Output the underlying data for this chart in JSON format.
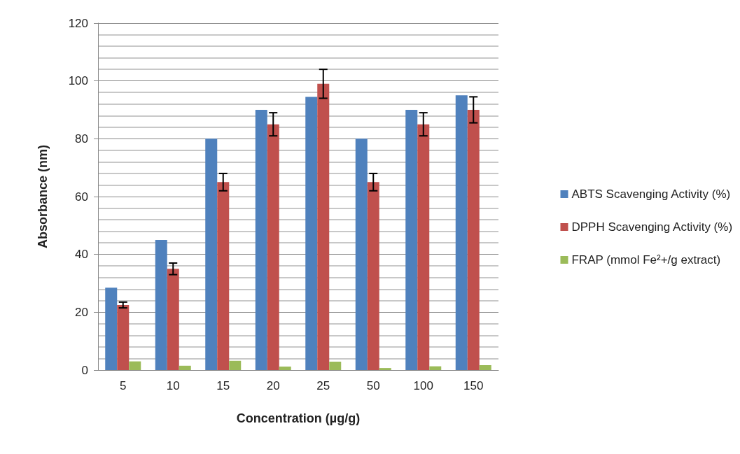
{
  "chart_data": {
    "type": "bar",
    "xlabel": "Concentration (µg/g)",
    "ylabel": "Absorbance (nm)",
    "categories": [
      "5",
      "10",
      "15",
      "20",
      "25",
      "50",
      "100",
      "150"
    ],
    "series": [
      {
        "name": "ABTS Scavenging Activity (%)",
        "color": "#4f81bd",
        "values": [
          28.5,
          45,
          80,
          90,
          94.5,
          80,
          90,
          95
        ]
      },
      {
        "name": "DPPH Scavenging Activity (%)",
        "color": "#c0504d",
        "values": [
          22.5,
          35,
          65,
          85,
          99,
          65,
          85,
          90
        ],
        "errors": [
          1,
          2,
          3,
          4,
          5,
          3,
          4,
          4.5
        ]
      },
      {
        "name": "FRAP (mmol Fe²+/g extract)",
        "color": "#9bbb59",
        "values": [
          3,
          1.5,
          3.2,
          1.2,
          2.9,
          0.7,
          1.3,
          1.7
        ]
      }
    ],
    "ylim": [
      0,
      120
    ],
    "yticks": [
      0,
      20,
      40,
      60,
      80,
      100,
      120
    ],
    "grid": true,
    "legend": "right"
  }
}
